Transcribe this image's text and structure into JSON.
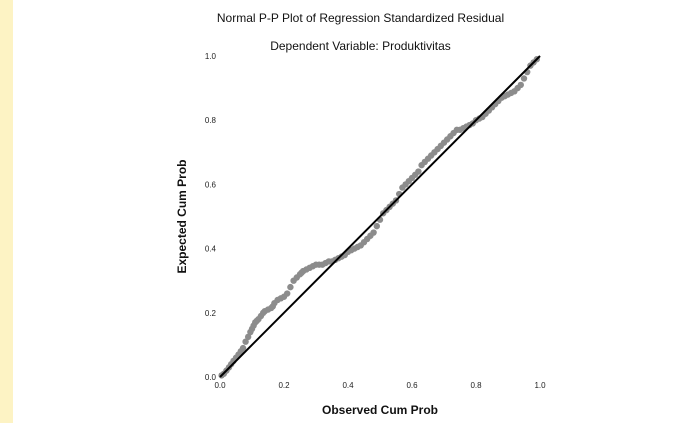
{
  "chart_data": {
    "type": "scatter",
    "title": "Normal P-P Plot of Regression Standardized Residual",
    "subtitle": "Dependent Variable: Produktivitas",
    "xlabel": "Observed Cum Prob",
    "ylabel": "Expected Cum Prob",
    "xlim": [
      0,
      1
    ],
    "ylim": [
      0,
      1
    ],
    "xticks": [
      "0.0",
      "0.2",
      "0.4",
      "0.6",
      "0.8",
      "1.0"
    ],
    "yticks": [
      "0.0",
      "0.2",
      "0.4",
      "0.6",
      "0.8",
      "1.0"
    ],
    "grid": false,
    "reference_line": {
      "from": [
        0,
        0
      ],
      "to": [
        1,
        1
      ]
    },
    "colors": {
      "points": "#8c8c8c",
      "line": "#000000"
    },
    "series": [
      {
        "x": [
          0.005,
          0.012,
          0.02,
          0.028,
          0.035,
          0.042,
          0.05,
          0.058,
          0.065,
          0.072,
          0.08,
          0.088,
          0.095,
          0.1,
          0.105,
          0.11,
          0.115,
          0.12,
          0.128,
          0.135,
          0.14,
          0.15,
          0.16,
          0.165,
          0.17,
          0.18,
          0.19,
          0.2,
          0.21,
          0.22,
          0.23,
          0.24,
          0.25,
          0.255,
          0.26,
          0.27,
          0.28,
          0.29,
          0.3,
          0.31,
          0.32,
          0.33,
          0.34,
          0.35,
          0.36,
          0.37,
          0.38,
          0.39,
          0.4,
          0.41,
          0.42,
          0.43,
          0.44,
          0.45,
          0.46,
          0.47,
          0.48,
          0.49,
          0.5,
          0.51,
          0.52,
          0.53,
          0.54,
          0.55,
          0.56,
          0.57,
          0.58,
          0.59,
          0.6,
          0.61,
          0.62,
          0.63,
          0.64,
          0.65,
          0.66,
          0.67,
          0.68,
          0.69,
          0.7,
          0.71,
          0.72,
          0.73,
          0.74,
          0.75,
          0.76,
          0.77,
          0.78,
          0.79,
          0.8,
          0.81,
          0.82,
          0.83,
          0.84,
          0.85,
          0.86,
          0.87,
          0.88,
          0.89,
          0.9,
          0.91,
          0.92,
          0.93,
          0.94,
          0.95,
          0.96,
          0.97,
          0.98,
          0.99
        ],
        "y": [
          0.005,
          0.01,
          0.02,
          0.03,
          0.04,
          0.05,
          0.06,
          0.07,
          0.08,
          0.09,
          0.11,
          0.125,
          0.14,
          0.15,
          0.16,
          0.17,
          0.175,
          0.18,
          0.19,
          0.2,
          0.205,
          0.21,
          0.215,
          0.22,
          0.23,
          0.24,
          0.245,
          0.25,
          0.26,
          0.28,
          0.3,
          0.31,
          0.32,
          0.325,
          0.33,
          0.335,
          0.34,
          0.345,
          0.35,
          0.35,
          0.35,
          0.355,
          0.36,
          0.36,
          0.365,
          0.37,
          0.375,
          0.38,
          0.39,
          0.395,
          0.4,
          0.405,
          0.41,
          0.42,
          0.43,
          0.44,
          0.45,
          0.47,
          0.49,
          0.51,
          0.52,
          0.53,
          0.54,
          0.55,
          0.57,
          0.59,
          0.6,
          0.61,
          0.62,
          0.63,
          0.64,
          0.66,
          0.67,
          0.68,
          0.69,
          0.7,
          0.71,
          0.72,
          0.73,
          0.74,
          0.75,
          0.76,
          0.77,
          0.77,
          0.775,
          0.78,
          0.785,
          0.79,
          0.8,
          0.805,
          0.81,
          0.82,
          0.83,
          0.84,
          0.85,
          0.86,
          0.87,
          0.875,
          0.88,
          0.885,
          0.89,
          0.9,
          0.91,
          0.93,
          0.95,
          0.97,
          0.98,
          0.99
        ]
      }
    ]
  }
}
